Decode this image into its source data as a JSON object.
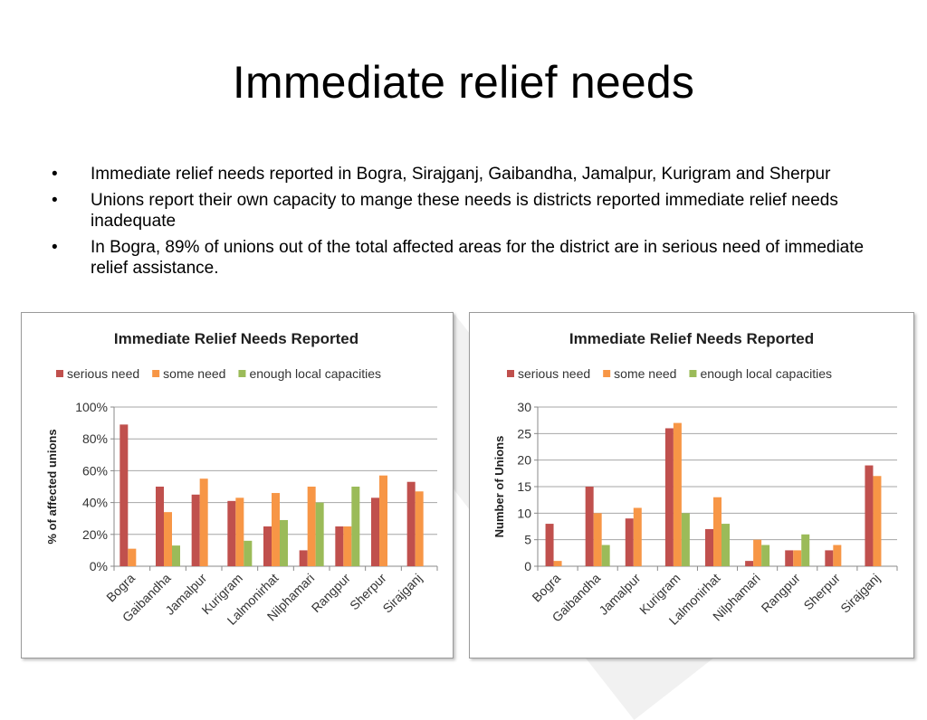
{
  "slide": {
    "title": "Immediate relief needs",
    "bullets": [
      "Immediate relief needs reported in Bogra, Sirajganj, Gaibandha, Jamalpur, Kurigram and Sherpur",
      "Unions report their own capacity to mange these needs is districts reported immediate relief needs inadequate",
      "In Bogra, 89% of unions out of the total affected areas for the district are in serious need of immediate relief assistance."
    ],
    "bullet_glyph": "•"
  },
  "chart_data": [
    {
      "type": "bar",
      "title": "Immediate Relief Needs Reported",
      "ylabel": "% of affected unions",
      "xlabel": "",
      "categories": [
        "Bogra",
        "Gaibandha",
        "Jamalpur",
        "Kurigram",
        "Lalmonirhat",
        "Nilphamari",
        "Rangpur",
        "Sherpur",
        "Sirajganj"
      ],
      "series": [
        {
          "name": "serious need",
          "color": "#c0504d",
          "values": [
            89,
            50,
            45,
            41,
            25,
            10,
            25,
            43,
            53
          ]
        },
        {
          "name": "some need",
          "color": "#f79646",
          "values": [
            11,
            34,
            55,
            43,
            46,
            50,
            25,
            57,
            47
          ]
        },
        {
          "name": "enough local capacities",
          "color": "#9bbb59",
          "values": [
            0,
            13,
            0,
            16,
            29,
            40,
            50,
            0,
            0
          ]
        }
      ],
      "ylim": [
        0,
        100
      ],
      "yticks": [
        0,
        20,
        40,
        60,
        80,
        100
      ],
      "ytick_labels": [
        "0%",
        "20%",
        "40%",
        "60%",
        "80%",
        "100%"
      ],
      "grid": true,
      "legend": "top"
    },
    {
      "type": "bar",
      "title": "Immediate Relief Needs Reported",
      "ylabel": "Number of Unions",
      "xlabel": "",
      "categories": [
        "Bogra",
        "Gaibandha",
        "Jamalpur",
        "Kurigram",
        "Lalmonirhat",
        "Nilphamari",
        "Rangpur",
        "Sherpur",
        "Sirajganj"
      ],
      "series": [
        {
          "name": "serious need",
          "color": "#c0504d",
          "values": [
            8,
            15,
            9,
            26,
            7,
            1,
            3,
            3,
            19
          ]
        },
        {
          "name": "some need",
          "color": "#f79646",
          "values": [
            1,
            10,
            11,
            27,
            13,
            5,
            3,
            4,
            17
          ]
        },
        {
          "name": "enough local capacities",
          "color": "#9bbb59",
          "values": [
            0,
            4,
            0,
            10,
            8,
            4,
            6,
            0,
            0
          ]
        }
      ],
      "ylim": [
        0,
        30
      ],
      "yticks": [
        0,
        5,
        10,
        15,
        20,
        25,
        30
      ],
      "ytick_labels": [
        "0",
        "5",
        "10",
        "15",
        "20",
        "25",
        "30"
      ],
      "grid": true,
      "legend": "top"
    }
  ]
}
